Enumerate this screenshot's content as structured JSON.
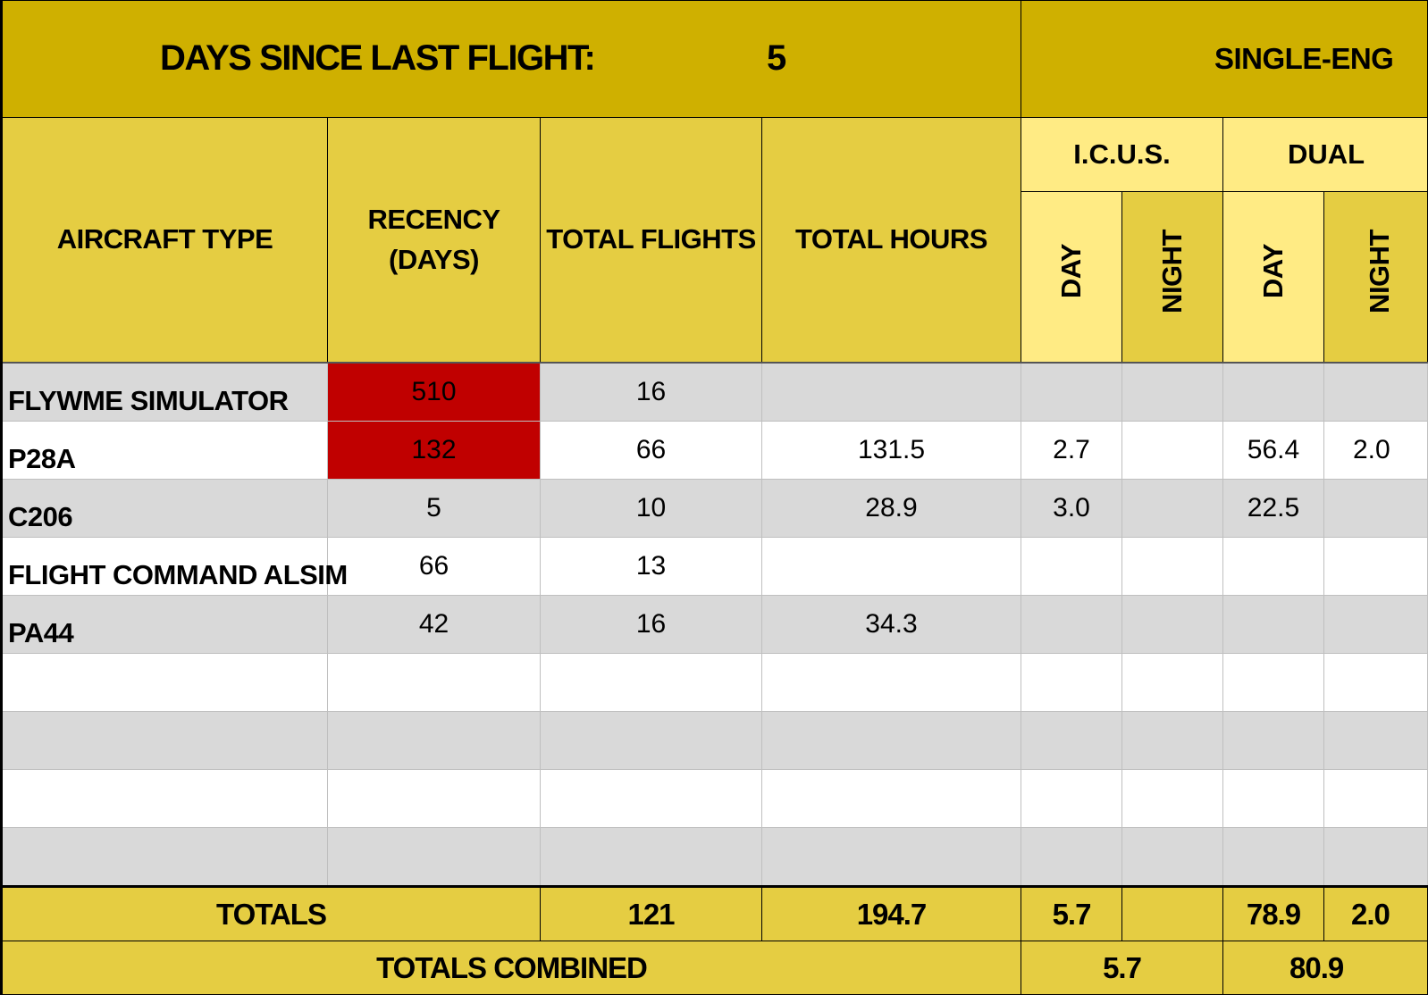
{
  "banner": {
    "label": "DAYS SINCE LAST FLIGHT:",
    "value": "5",
    "section": "SINGLE-ENG"
  },
  "headers": {
    "aircraft_type": "AIRCRAFT TYPE",
    "recency_line1": "RECENCY",
    "recency_line2": "(DAYS)",
    "total_flights": "TOTAL FLIGHTS",
    "total_hours": "TOTAL HOURS",
    "icus": "I.C.U.S.",
    "dual": "DUAL",
    "icus_day": "DAY",
    "icus_night": "NIGHT",
    "dual_day": "DAY",
    "dual_night": "NIGHT"
  },
  "colors": {
    "banner": "#cfb000",
    "header": "#e5cd42",
    "subheader": "#ffeb84",
    "alert": "#c00000",
    "stripe": "#d9d9d9"
  },
  "rows": [
    {
      "aircraft": "FLYWME SIMULATOR",
      "recency": "510",
      "recency_alert": true,
      "flights": "16",
      "hours": "",
      "icus_day": "",
      "icus_night": "",
      "dual_day": "",
      "dual_night": ""
    },
    {
      "aircraft": "P28A",
      "recency": "132",
      "recency_alert": true,
      "flights": "66",
      "hours": "131.5",
      "icus_day": "2.7",
      "icus_night": "",
      "dual_day": "56.4",
      "dual_night": "2.0"
    },
    {
      "aircraft": "C206",
      "recency": "5",
      "recency_alert": false,
      "flights": "10",
      "hours": "28.9",
      "icus_day": "3.0",
      "icus_night": "",
      "dual_day": "22.5",
      "dual_night": ""
    },
    {
      "aircraft": "FLIGHT COMMAND ALSIM",
      "recency": "66",
      "recency_alert": false,
      "flights": "13",
      "hours": "",
      "icus_day": "",
      "icus_night": "",
      "dual_day": "",
      "dual_night": ""
    },
    {
      "aircraft": "PA44",
      "recency": "42",
      "recency_alert": false,
      "flights": "16",
      "hours": "34.3",
      "icus_day": "",
      "icus_night": "",
      "dual_day": "",
      "dual_night": ""
    },
    {
      "aircraft": "",
      "recency": "",
      "recency_alert": false,
      "flights": "",
      "hours": "",
      "icus_day": "",
      "icus_night": "",
      "dual_day": "",
      "dual_night": ""
    },
    {
      "aircraft": "",
      "recency": "",
      "recency_alert": false,
      "flights": "",
      "hours": "",
      "icus_day": "",
      "icus_night": "",
      "dual_day": "",
      "dual_night": ""
    },
    {
      "aircraft": "",
      "recency": "",
      "recency_alert": false,
      "flights": "",
      "hours": "",
      "icus_day": "",
      "icus_night": "",
      "dual_day": "",
      "dual_night": ""
    },
    {
      "aircraft": "",
      "recency": "",
      "recency_alert": false,
      "flights": "",
      "hours": "",
      "icus_day": "",
      "icus_night": "",
      "dual_day": "",
      "dual_night": ""
    }
  ],
  "totals": {
    "label": "TOTALS",
    "flights": "121",
    "hours": "194.7",
    "icus_day": "5.7",
    "icus_night": "",
    "dual_day": "78.9",
    "dual_night": "2.0"
  },
  "combined": {
    "label": "TOTALS COMBINED",
    "icus": "5.7",
    "dual": "80.9"
  }
}
